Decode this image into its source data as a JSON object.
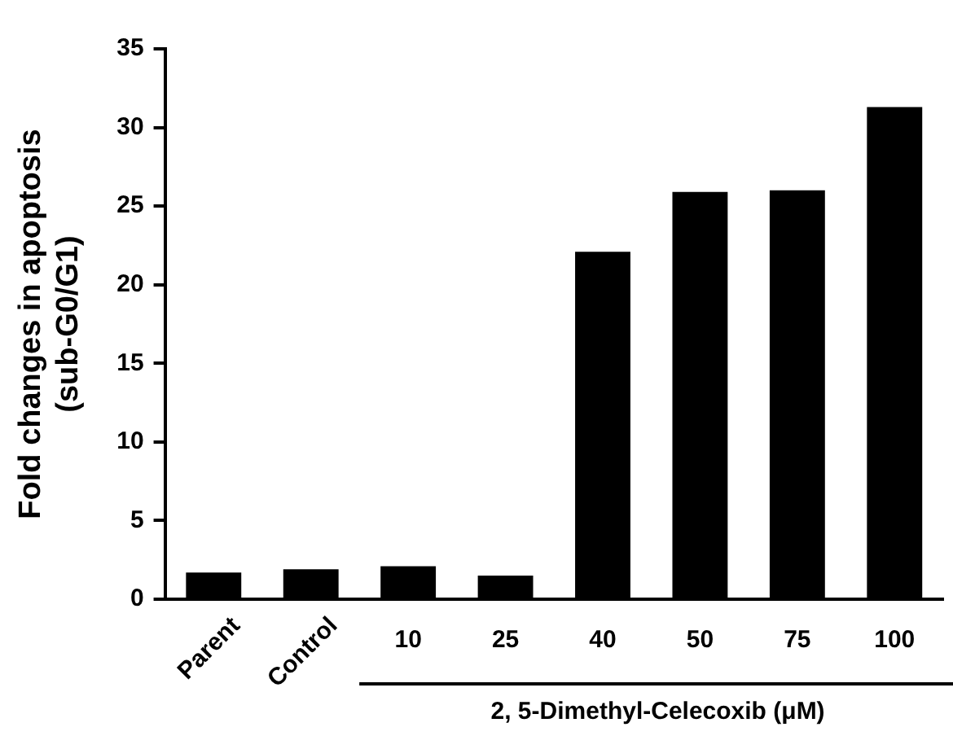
{
  "chart_data": {
    "type": "bar",
    "categories": [
      "Parent",
      "Control",
      "10",
      "25",
      "40",
      "50",
      "75",
      "100"
    ],
    "values": [
      1.7,
      1.9,
      2.1,
      1.5,
      22.1,
      25.9,
      26.0,
      31.3
    ],
    "color": "#000000",
    "xlabel": "2, 5-Dimethyl-Celecoxib (μM)",
    "ylabel": "Fold changes in apoptosis\n(sub-G0/G1)",
    "ylim": [
      0,
      35
    ],
    "yticks": [
      0,
      5,
      10,
      15,
      20,
      25,
      30,
      35
    ],
    "grid": false,
    "legend": false
  }
}
